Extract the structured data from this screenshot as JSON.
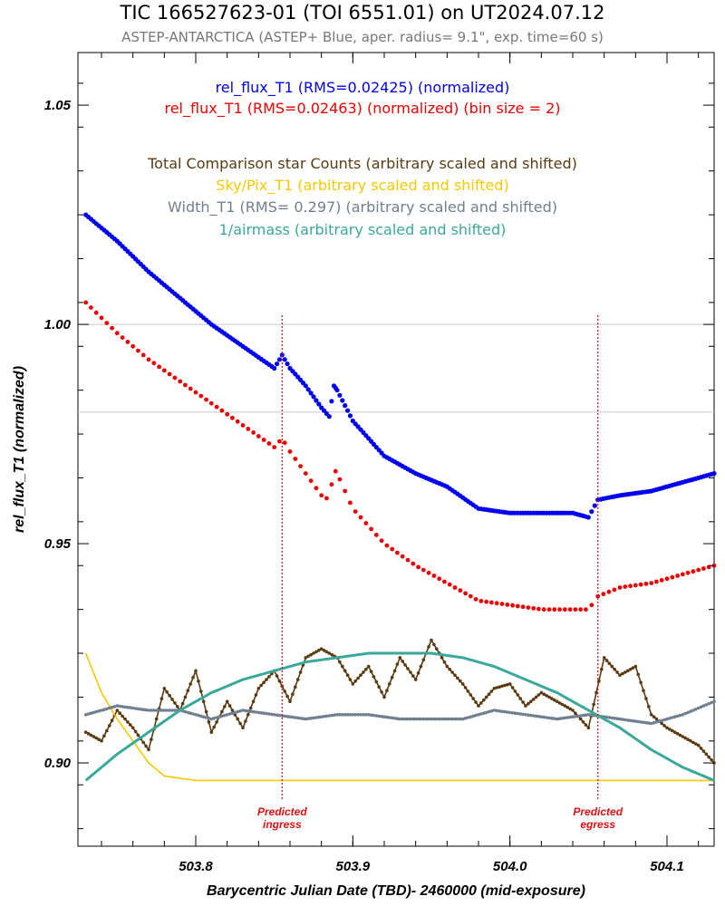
{
  "title": "TIC 166527623-01 (TOI 6551.01) on UT2024.07.12",
  "subtitle": "ASTEP-ANTARCTICA (ASTEP+ Blue, aper. radius= 9.1\", exp. time=60 s)",
  "colors": {
    "blue": "#0000ee",
    "red": "#ee0000",
    "brown": "#5a3a10",
    "yellow": "#f5c800",
    "gray": "#6f7f8f",
    "teal": "#3aa89a",
    "predicted": "#e01010",
    "refline": "#c8c8c8"
  },
  "chart_data": {
    "type": "scatter",
    "xlabel": "Barycentric Julian Date (TBD)- 2460000 (mid-exposure)",
    "ylabel": "rel_flux_T1 (normalized)",
    "xlim": [
      503.725,
      504.13
    ],
    "ylim": [
      0.881,
      1.062
    ],
    "xticks": [
      503.8,
      503.9,
      504.0,
      504.1
    ],
    "xtick_labels": [
      "503.8",
      "503.9",
      "504.0",
      "504.1"
    ],
    "yticks": [
      0.9,
      0.95,
      1.0,
      1.05
    ],
    "ytick_labels": [
      "0.90",
      "0.95",
      "1.00",
      "1.05"
    ],
    "reference_lines_y": [
      1.0,
      0.98
    ],
    "legend": [
      {
        "text": "rel_flux_T1 (RMS=0.02425) (normalized)",
        "color": "#0000ee"
      },
      {
        "text": "rel_flux_T1 (RMS=0.02463) (normalized) (bin size = 2)",
        "color": "#ee0000"
      },
      {
        "text": "Total Comparison star Counts (arbitrary scaled and shifted)",
        "color": "#5a3a10"
      },
      {
        "text": "Sky/Pix_T1 (arbitrary scaled and shifted)",
        "color": "#f5c800"
      },
      {
        "text": "Width_T1 (RMS= 0.297) (arbitrary scaled and shifted)",
        "color": "#6f7f8f"
      },
      {
        "text": "1/airmass (arbitrary scaled and shifted)",
        "color": "#3aa89a"
      }
    ],
    "predicted_lines": [
      {
        "x": 503.855,
        "label1": "Predicted",
        "label2": "ingress"
      },
      {
        "x": 504.056,
        "label1": "Predicted",
        "label2": "egress"
      }
    ],
    "series": [
      {
        "key": "blue",
        "color": "#0000ee",
        "x": [
          503.73,
          503.75,
          503.77,
          503.79,
          503.81,
          503.83,
          503.85,
          503.855,
          503.86,
          503.87,
          503.88,
          503.885,
          503.888,
          503.89,
          503.9,
          503.92,
          503.94,
          503.96,
          503.98,
          504.0,
          504.02,
          504.04,
          504.05,
          504.056,
          504.07,
          504.09,
          504.11,
          504.13
        ],
        "y": [
          1.025,
          1.019,
          1.012,
          1.006,
          1.0,
          0.995,
          0.99,
          0.993,
          0.99,
          0.986,
          0.981,
          0.979,
          0.986,
          0.985,
          0.978,
          0.97,
          0.966,
          0.963,
          0.958,
          0.957,
          0.957,
          0.957,
          0.956,
          0.96,
          0.961,
          0.962,
          0.964,
          0.966
        ]
      },
      {
        "key": "red",
        "color": "#ee0000",
        "x": [
          503.73,
          503.75,
          503.77,
          503.79,
          503.81,
          503.83,
          503.85,
          503.855,
          503.86,
          503.87,
          503.88,
          503.885,
          503.888,
          503.89,
          503.9,
          503.92,
          503.94,
          503.96,
          503.98,
          504.0,
          504.02,
          504.04,
          504.05,
          504.056,
          504.07,
          504.09,
          504.11,
          504.13
        ],
        "y": [
          1.005,
          0.998,
          0.992,
          0.987,
          0.982,
          0.977,
          0.972,
          0.974,
          0.971,
          0.966,
          0.961,
          0.96,
          0.967,
          0.966,
          0.958,
          0.95,
          0.945,
          0.941,
          0.937,
          0.936,
          0.935,
          0.935,
          0.935,
          0.938,
          0.94,
          0.941,
          0.943,
          0.945
        ]
      },
      {
        "key": "brown",
        "color": "#5a3a10",
        "x": [
          503.73,
          503.74,
          503.75,
          503.76,
          503.77,
          503.78,
          503.79,
          503.8,
          503.81,
          503.82,
          503.83,
          503.84,
          503.85,
          503.86,
          503.87,
          503.88,
          503.89,
          503.9,
          503.91,
          503.92,
          503.93,
          503.94,
          503.95,
          503.96,
          503.97,
          503.98,
          503.99,
          504.0,
          504.01,
          504.02,
          504.03,
          504.04,
          504.05,
          504.06,
          504.07,
          504.08,
          504.09,
          504.1,
          504.11,
          504.12,
          504.13
        ],
        "y": [
          0.907,
          0.905,
          0.912,
          0.908,
          0.903,
          0.917,
          0.912,
          0.921,
          0.907,
          0.914,
          0.908,
          0.917,
          0.921,
          0.914,
          0.924,
          0.926,
          0.924,
          0.918,
          0.922,
          0.915,
          0.924,
          0.919,
          0.928,
          0.922,
          0.918,
          0.913,
          0.917,
          0.918,
          0.913,
          0.916,
          0.914,
          0.912,
          0.908,
          0.924,
          0.92,
          0.922,
          0.911,
          0.908,
          0.906,
          0.904,
          0.9
        ]
      },
      {
        "key": "yellow",
        "color": "#f5c800",
        "x": [
          503.73,
          503.74,
          503.75,
          503.76,
          503.77,
          503.78,
          503.8,
          503.85,
          503.9,
          503.95,
          504.0,
          504.05,
          504.1,
          504.13
        ],
        "y": [
          0.925,
          0.916,
          0.91,
          0.905,
          0.9,
          0.897,
          0.896,
          0.896,
          0.896,
          0.896,
          0.896,
          0.896,
          0.896,
          0.896
        ]
      },
      {
        "key": "gray",
        "color": "#6f7f8f",
        "x": [
          503.73,
          503.75,
          503.77,
          503.79,
          503.81,
          503.83,
          503.85,
          503.87,
          503.89,
          503.91,
          503.93,
          503.95,
          503.97,
          503.99,
          504.01,
          504.03,
          504.05,
          504.07,
          504.09,
          504.11,
          504.13
        ],
        "y": [
          0.911,
          0.913,
          0.912,
          0.912,
          0.91,
          0.912,
          0.911,
          0.91,
          0.911,
          0.911,
          0.91,
          0.91,
          0.91,
          0.912,
          0.911,
          0.91,
          0.911,
          0.91,
          0.909,
          0.911,
          0.914
        ]
      },
      {
        "key": "teal",
        "color": "#3aa89a",
        "x": [
          503.73,
          503.75,
          503.77,
          503.79,
          503.81,
          503.83,
          503.85,
          503.87,
          503.89,
          503.91,
          503.93,
          503.95,
          503.97,
          503.99,
          504.01,
          504.03,
          504.05,
          504.07,
          504.09,
          504.11,
          504.13
        ],
        "y": [
          0.896,
          0.902,
          0.907,
          0.912,
          0.916,
          0.919,
          0.921,
          0.923,
          0.924,
          0.925,
          0.925,
          0.925,
          0.924,
          0.922,
          0.919,
          0.916,
          0.912,
          0.908,
          0.903,
          0.899,
          0.896
        ]
      }
    ]
  }
}
